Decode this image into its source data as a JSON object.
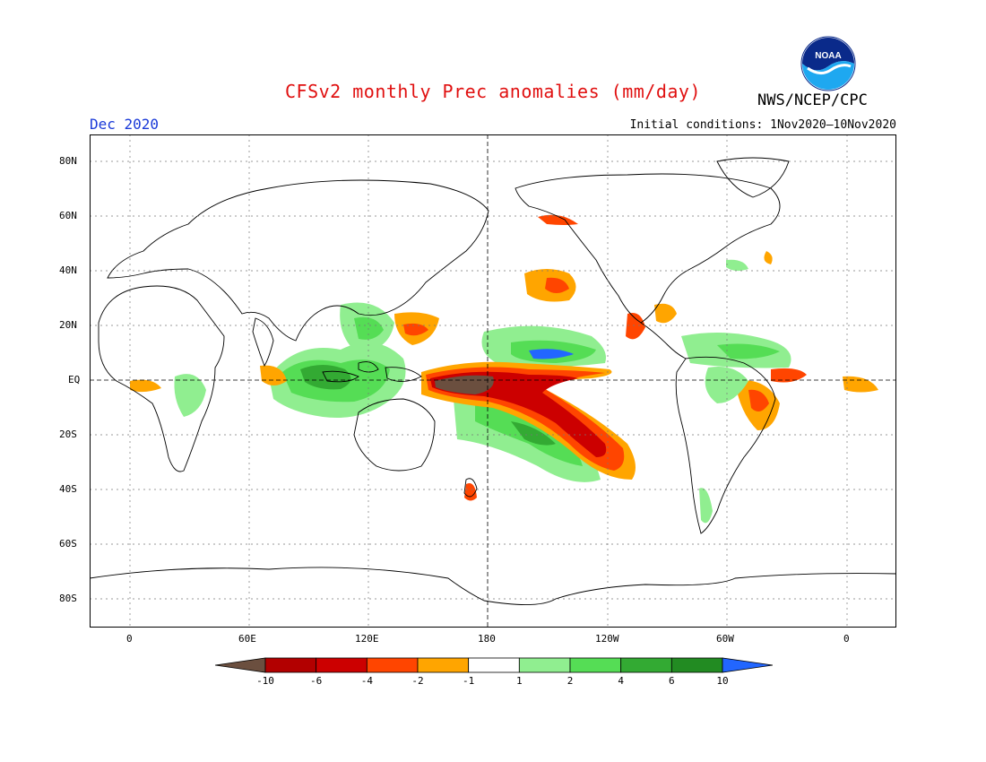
{
  "title": "CFSv2 monthly Prec anomalies (mm/day)",
  "agency": "NWS/NCEP/CPC",
  "logo_text": "NOAA",
  "valid_month": "Dec 2020",
  "initial_conditions": "Initial conditions: 1Nov2020–10Nov2020",
  "lat_labels": [
    "80N",
    "60N",
    "40N",
    "20N",
    "EQ",
    "20S",
    "40S",
    "60S",
    "80S"
  ],
  "lon_labels": [
    "0",
    "60E",
    "120E",
    "180",
    "120W",
    "60W",
    "0"
  ],
  "colorbar": {
    "labels": [
      "-10",
      "-6",
      "-4",
      "-2",
      "-1",
      "1",
      "2",
      "4",
      "6",
      "10"
    ],
    "colors": [
      "#6b4f3f",
      "#b20000",
      "#cc0000",
      "#ff4500",
      "#ffa500",
      "#ffffff",
      "#90ee90",
      "#55dd55",
      "#33aa33",
      "#228b22",
      "#2266ff"
    ]
  }
}
